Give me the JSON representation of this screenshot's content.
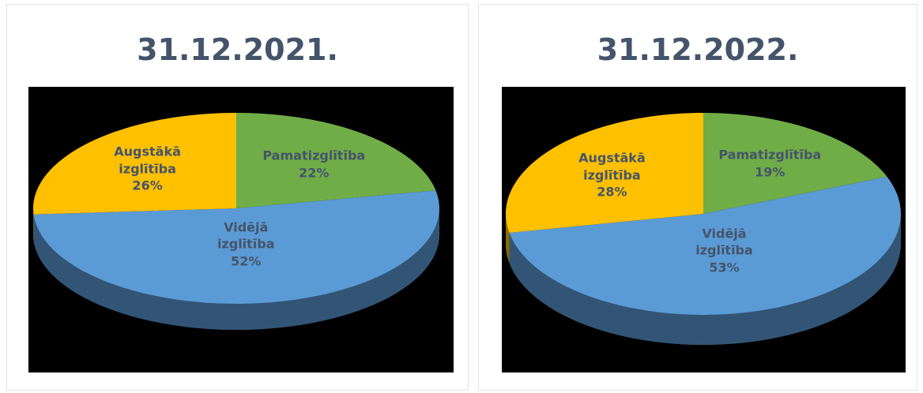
{
  "chart_data": [
    {
      "type": "pie",
      "title": "31.12.2021.",
      "categories": [
        "Pamatizglītība",
        "Vidējā izglītība",
        "Augstākā izglītība"
      ],
      "values": [
        22,
        52,
        26
      ],
      "value_labels": [
        "22%",
        "52%",
        "26%"
      ],
      "colors": [
        "#70ad47",
        "#5b9bd5",
        "#ffc000"
      ]
    },
    {
      "type": "pie",
      "title": "31.12.2022.",
      "categories": [
        "Pamatizglītība",
        "Vidējā izglītība",
        "Augstākā izglītība"
      ],
      "values": [
        19,
        53,
        28
      ],
      "value_labels": [
        "19%",
        "53%",
        "28%"
      ],
      "colors": [
        "#70ad47",
        "#5b9bd5",
        "#ffc000"
      ]
    }
  ]
}
